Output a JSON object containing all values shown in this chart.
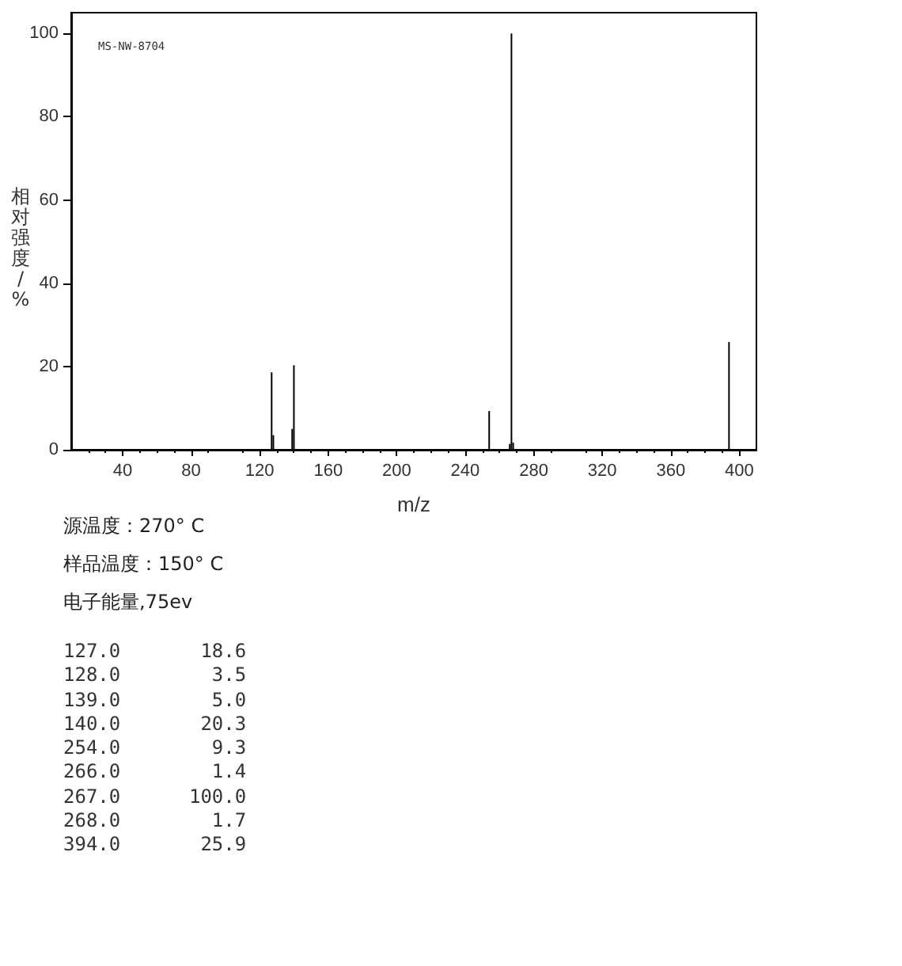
{
  "chart_data": {
    "type": "bar",
    "xlabel": "m/z",
    "ylabel": "相对强度/%",
    "x": [
      127,
      128,
      139,
      140,
      254,
      266,
      267,
      268,
      394
    ],
    "values": [
      18.6,
      3.5,
      5.0,
      20.3,
      9.3,
      1.4,
      100.0,
      1.7,
      25.9
    ],
    "color": "#000000",
    "xlim": [
      10,
      410
    ],
    "xticks": [
      40,
      80,
      120,
      160,
      200,
      240,
      280,
      320,
      360,
      400
    ],
    "ylim": [
      0,
      105
    ],
    "yticks": [
      0,
      20,
      40,
      60,
      80,
      100
    ],
    "grid": false,
    "annotations": [
      "MS-NW-8704",
      "源温度：270° C",
      "样品温度：150° C",
      "电子能量,75ev",
      "127.0       18.6",
      "128.0        3.5",
      "139.0        5.0",
      "140.0       20.3",
      "254.0        9.3",
      "266.0        1.4",
      "267.0      100.0",
      "268.0        1.7",
      "394.0       25.9"
    ]
  }
}
